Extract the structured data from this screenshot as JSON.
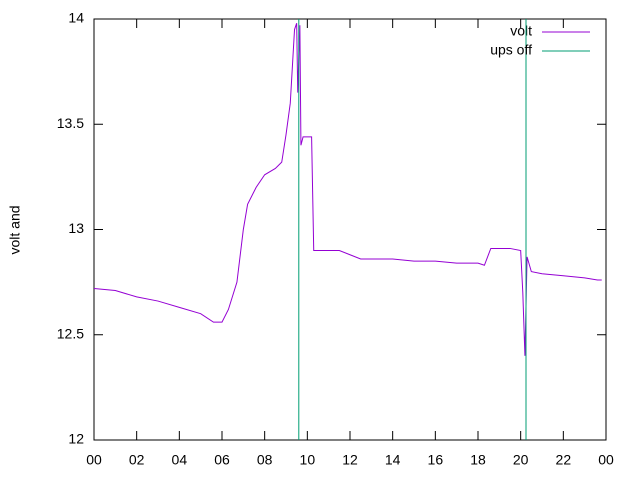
{
  "chart_data": {
    "type": "line",
    "ylabel": "volt and",
    "xlim": [
      0,
      24
    ],
    "xticks": [
      {
        "value": 0,
        "label": "00"
      },
      {
        "value": 2,
        "label": "02"
      },
      {
        "value": 4,
        "label": "04"
      },
      {
        "value": 6,
        "label": "06"
      },
      {
        "value": 8,
        "label": "08"
      },
      {
        "value": 10,
        "label": "10"
      },
      12,
      14,
      16,
      18,
      20,
      22,
      {
        "value": 24,
        "label": "00"
      }
    ],
    "ylim": [
      12,
      14
    ],
    "yticks": [
      12,
      12.5,
      13,
      13.5,
      14
    ],
    "grid": false,
    "legend": "top-right",
    "series": [
      {
        "name": "volt",
        "color": "#9400d3",
        "x": [
          0,
          1,
          2,
          3,
          4,
          5,
          5.6,
          6.0,
          6.3,
          6.7,
          7.0,
          7.2,
          7.6,
          8.0,
          8.5,
          8.8,
          9.0,
          9.2,
          9.4,
          9.5,
          9.55,
          9.65,
          9.7,
          9.8,
          10.2,
          10.3,
          11.5,
          12.0,
          12.5,
          14,
          15,
          16,
          17,
          18,
          18.3,
          18.6,
          19.5,
          20.0,
          20.1,
          20.2,
          20.3,
          20.5,
          21,
          22,
          23,
          23.6,
          23.8
        ],
        "values": [
          12.72,
          12.71,
          12.68,
          12.66,
          12.63,
          12.6,
          12.56,
          12.56,
          12.62,
          12.75,
          13.0,
          13.12,
          13.2,
          13.26,
          13.29,
          13.32,
          13.45,
          13.6,
          13.95,
          13.98,
          13.65,
          13.97,
          13.4,
          13.44,
          13.44,
          12.9,
          12.9,
          12.88,
          12.86,
          12.86,
          12.85,
          12.85,
          12.84,
          12.84,
          12.83,
          12.91,
          12.91,
          12.9,
          12.7,
          12.4,
          12.87,
          12.8,
          12.79,
          12.78,
          12.77,
          12.76,
          12.76
        ]
      },
      {
        "name": "ups off",
        "color": "#009e73",
        "x": [
          9.6,
          9.6,
          9.6,
          20.25,
          20.25
        ],
        "values": [
          12,
          14,
          null,
          12,
          14
        ]
      }
    ]
  }
}
